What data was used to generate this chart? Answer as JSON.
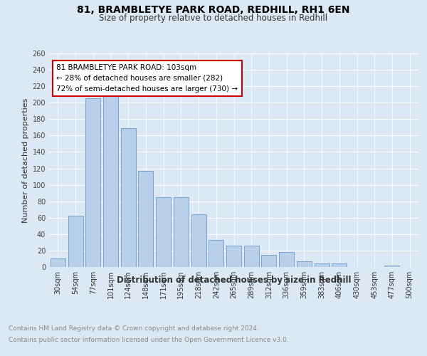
{
  "title": "81, BRAMBLETYE PARK ROAD, REDHILL, RH1 6EN",
  "subtitle": "Size of property relative to detached houses in Redhill",
  "xlabel": "Distribution of detached houses by size in Redhill",
  "ylabel": "Number of detached properties",
  "categories": [
    "30sqm",
    "54sqm",
    "77sqm",
    "101sqm",
    "124sqm",
    "148sqm",
    "171sqm",
    "195sqm",
    "218sqm",
    "242sqm",
    "265sqm",
    "289sqm",
    "312sqm",
    "336sqm",
    "359sqm",
    "383sqm",
    "406sqm",
    "430sqm",
    "453sqm",
    "477sqm",
    "500sqm"
  ],
  "values": [
    10,
    62,
    205,
    208,
    169,
    117,
    85,
    85,
    64,
    33,
    26,
    26,
    15,
    18,
    7,
    4,
    4,
    0,
    0,
    2,
    0
  ],
  "bar_color": "#b8d0ea",
  "bar_edge_color": "#6899c8",
  "annotation_text": "81 BRAMBLETYE PARK ROAD: 103sqm\n← 28% of detached houses are smaller (282)\n72% of semi-detached houses are larger (730) →",
  "annotation_box_color": "#ffffff",
  "annotation_box_edge_color": "#cc0000",
  "ylim": [
    0,
    260
  ],
  "yticks": [
    0,
    20,
    40,
    60,
    80,
    100,
    120,
    140,
    160,
    180,
    200,
    220,
    240,
    260
  ],
  "footer_line1": "Contains HM Land Registry data © Crown copyright and database right 2024.",
  "footer_line2": "Contains public sector information licensed under the Open Government Licence v3.0.",
  "background_color": "#dce8f4",
  "plot_background": "#dce8f4",
  "title_fontsize": 10,
  "subtitle_fontsize": 8.5,
  "axis_label_fontsize": 8,
  "tick_fontsize": 7,
  "annotation_fontsize": 7.5,
  "footer_fontsize": 6.5
}
